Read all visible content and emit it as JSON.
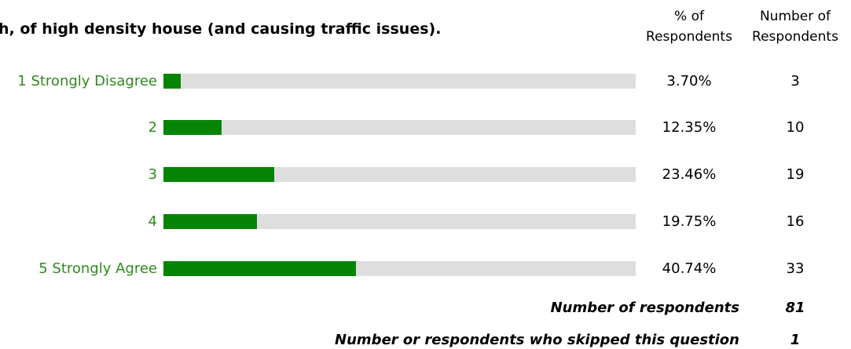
{
  "title": "h, of high density house (and causing traffic issues).",
  "headers": {
    "pct_line1": "% of",
    "pct_line2": "Respondents",
    "num_line1": "Number of",
    "num_line2": "Respondents"
  },
  "colors": {
    "bar_fill": "#068406",
    "bar_track": "#dedede",
    "label_text": "#2f8a1e"
  },
  "rows": [
    {
      "label": "1 Strongly Disagree",
      "pct": "3.70%",
      "count": "3"
    },
    {
      "label": "2",
      "pct": "12.35%",
      "count": "10"
    },
    {
      "label": "3",
      "pct": "23.46%",
      "count": "19"
    },
    {
      "label": "4",
      "pct": "19.75%",
      "count": "16"
    },
    {
      "label": "5 Strongly Agree",
      "pct": "40.74%",
      "count": "33"
    }
  ],
  "summary": {
    "respondents_label": "Number of respondents",
    "respondents_value": "81",
    "skipped_label": "Number or respondents who skipped this question",
    "skipped_value": "1"
  },
  "chart_data": {
    "type": "bar",
    "orientation": "horizontal",
    "title": "h, of high density house (and causing traffic issues).",
    "categories": [
      "1 Strongly Disagree",
      "2",
      "3",
      "4",
      "5 Strongly Agree"
    ],
    "values": [
      3.7,
      12.35,
      23.46,
      19.75,
      40.74
    ],
    "counts": [
      3,
      10,
      19,
      16,
      33
    ],
    "unit": "%",
    "xlim": [
      0,
      100
    ],
    "grid": false,
    "legend": "none"
  }
}
